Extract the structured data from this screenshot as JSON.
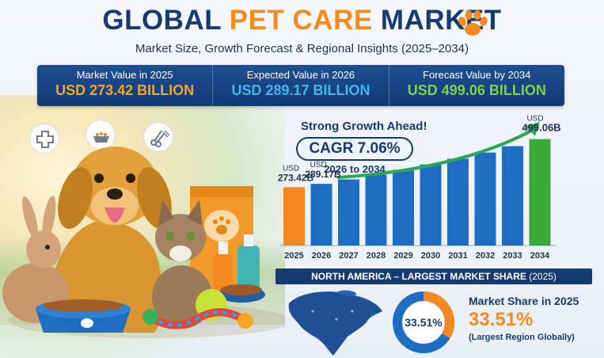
{
  "header": {
    "title_part1": "GLOBAL ",
    "title_part2": "PET CARE",
    "title_part3": " MARKET",
    "subtitle": "Market Size, Growth Forecast & Regional Insights (2025–2034)"
  },
  "kpis": [
    {
      "label": "Market Value in 2025",
      "value": "USD 273.42 BILLION",
      "color": "#f7a52a"
    },
    {
      "label": "Expected Value in 2026",
      "value": "USD 289.17 BILLION",
      "color": "#45b4f2"
    },
    {
      "label": "Forecast Value by 2034",
      "value": "USD 499.06 BILLION",
      "color": "#7fd14a"
    }
  ],
  "icons": [
    "medical-cross-icon",
    "pet-food-bowl-icon",
    "grooming-scissors-comb-icon"
  ],
  "growth": {
    "heading": "Strong Growth Ahead!",
    "cagr": "CAGR 7.06%",
    "range": "2026 to 2034"
  },
  "chart_data": {
    "type": "bar",
    "categories": [
      "2025",
      "2026",
      "2027",
      "2028",
      "2029",
      "2030",
      "2031",
      "2032",
      "2033",
      "2034"
    ],
    "values": [
      273.42,
      289.17,
      310,
      332,
      355,
      380,
      407,
      436,
      466,
      499.06
    ],
    "colors": {
      "first": "#f5881e",
      "middle": "#1f6dc2",
      "last": "#3aa83a",
      "arrow": "#2aa654"
    },
    "data_labels": [
      {
        "index": 0,
        "prefix": "USD",
        "value": "273.42B"
      },
      {
        "index": 1,
        "prefix": "USD",
        "value": "289.17B"
      },
      {
        "index": 9,
        "prefix": "USD",
        "value": "499.06B"
      }
    ],
    "ylim": [
      0,
      520
    ],
    "grid": false
  },
  "region": {
    "banner_main": "NORTH AMERICA – LARGEST MARKET SHARE ",
    "banner_paren": "(2025)",
    "share_title": "Market Share in 2025",
    "share_value": "33.51%",
    "share_note": "(Largest Region Globally)",
    "donut_label": "33.51%",
    "share_fraction": 0.3351,
    "donut_colors": {
      "share": "#f5881e",
      "rest": "#1f6dc2"
    }
  }
}
